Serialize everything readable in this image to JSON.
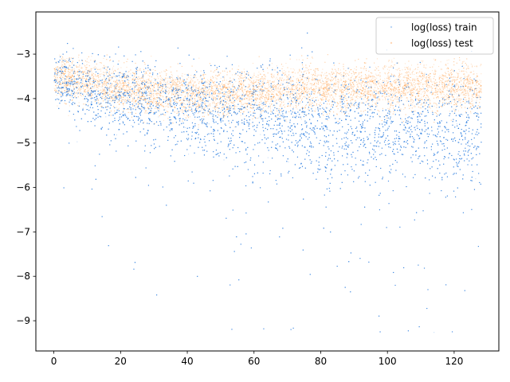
{
  "chart_data": {
    "type": "scatter",
    "title": "",
    "xlabel": "",
    "ylabel": "",
    "xlim": [
      -5.4,
      133.4
    ],
    "ylim": [
      -9.68,
      -2.05
    ],
    "xticks": [
      0,
      20,
      40,
      60,
      80,
      100,
      120
    ],
    "yticks": [
      -3,
      -4,
      -5,
      -6,
      -7,
      -8,
      -9
    ],
    "xtick_labels": [
      "0",
      "20",
      "40",
      "60",
      "80",
      "100",
      "120"
    ],
    "ytick_labels": [
      "−3",
      "−4",
      "−5",
      "−6",
      "−7",
      "−8",
      "−9"
    ],
    "grid": false,
    "legend_position": "top-right",
    "series": [
      {
        "name": "log(loss) train",
        "color": "#1f77e0",
        "x": [
          0,
          10,
          20,
          30,
          40,
          50,
          60,
          70,
          80,
          90,
          100,
          110,
          120,
          128
        ],
        "y_center": [
          -3.6,
          -3.85,
          -3.95,
          -4.1,
          -4.2,
          -4.35,
          -4.45,
          -4.55,
          -4.6,
          -4.65,
          -4.65,
          -4.7,
          -4.7,
          -4.7
        ],
        "y_spread": [
          0.3,
          0.35,
          0.4,
          0.45,
          0.5,
          0.5,
          0.55,
          0.55,
          0.6,
          0.6,
          0.6,
          0.6,
          0.65,
          0.65
        ],
        "y_min": -9.3,
        "y_max": -2.4
      },
      {
        "name": "log(loss) test",
        "color": "#ff7f0e",
        "x": [
          0,
          10,
          20,
          30,
          40,
          50,
          60,
          70,
          80,
          90,
          100,
          110,
          120,
          128
        ],
        "y_center": [
          -3.5,
          -3.6,
          -3.75,
          -3.85,
          -3.9,
          -3.9,
          -3.85,
          -3.8,
          -3.75,
          -3.75,
          -3.75,
          -3.75,
          -3.75,
          -3.75
        ],
        "y_spread": [
          0.25,
          0.25,
          0.25,
          0.25,
          0.25,
          0.25,
          0.25,
          0.25,
          0.25,
          0.25,
          0.25,
          0.25,
          0.25,
          0.25
        ],
        "y_min": -4.8,
        "y_max": -3.0
      }
    ]
  }
}
